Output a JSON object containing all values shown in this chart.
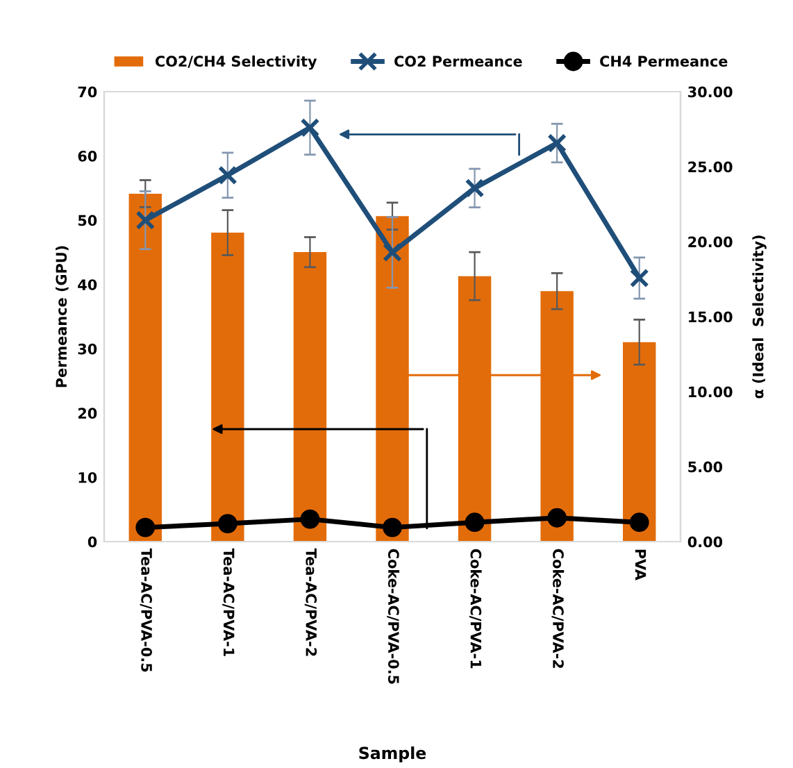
{
  "chart_data": {
    "type": "line",
    "xlabel": "Sample",
    "ylabel": "Permeance (GPU)",
    "y2label": "α (Ideal  Selectivity)",
    "categories": [
      "Tea-AC/PVA-0.5",
      "Tea-AC/PVA-1",
      "Tea-AC/PVA-2",
      "Coke-AC/PVA-0.5",
      "Coke-AC/PVA-1",
      "Coke-AC/PVA-2",
      "PVA"
    ],
    "series": [
      {
        "name": "CO2/CH4 Selectivity",
        "type": "bar",
        "axis": "y2",
        "color": "#e36c0a",
        "values": [
          23.2,
          20.6,
          19.3,
          21.7,
          17.7,
          16.7,
          13.3
        ],
        "errors": [
          0.9,
          1.5,
          1.0,
          0.9,
          1.6,
          1.2,
          1.5
        ]
      },
      {
        "name": "CO2 Permeance",
        "color": "#1f4e79",
        "marker": "cross",
        "values": [
          50,
          57,
          64.4,
          45,
          55,
          62,
          41
        ],
        "errors": [
          4.5,
          3.5,
          4.2,
          5.5,
          3,
          3,
          3.2
        ]
      },
      {
        "name": "CH4 Permeance",
        "color": "#000000",
        "marker": "circle",
        "values": [
          2.2,
          2.8,
          3.5,
          2.2,
          3.0,
          3.7,
          3.0
        ]
      }
    ],
    "ylim": [
      0,
      70
    ],
    "yticks": [
      0,
      10,
      20,
      30,
      40,
      50,
      60,
      70
    ],
    "y2lim": [
      0,
      30
    ],
    "y2ticks": [
      {
        "value": 0,
        "label": "0.00"
      },
      {
        "value": 5,
        "label": "5.00"
      },
      {
        "value": 10,
        "label": "10.00"
      },
      {
        "value": 15,
        "label": "15.00"
      },
      {
        "value": 20,
        "label": "20.00"
      },
      {
        "value": 25,
        "label": "25.00"
      },
      {
        "value": 30,
        "label": "30.00"
      }
    ],
    "grid": false,
    "legend": "top",
    "line_style": "solid"
  }
}
